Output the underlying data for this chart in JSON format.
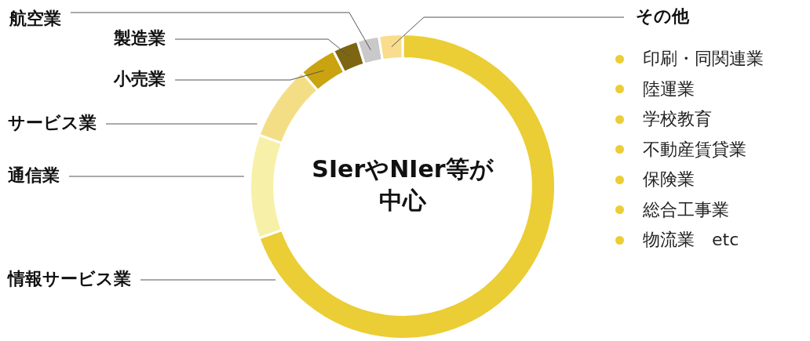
{
  "chart_data": {
    "type": "donut",
    "categories": [
      "情報サービス業",
      "通信業",
      "サービス業",
      "小売業",
      "製造業",
      "航空業",
      "その他"
    ],
    "values": [
      69.5,
      11,
      8,
      4,
      2.7,
      2.3,
      2.5
    ],
    "colors": [
      "#ebcd35",
      "#f7f0a8",
      "#f4de85",
      "#c9a310",
      "#7d6611",
      "#c9c9c9",
      "#f9dd8c"
    ],
    "annotations": [
      "SIerやNIer等が",
      "中心",
      "印刷・同関連業",
      "陸運業",
      "学校教育",
      "不動産賃貸業",
      "保険業",
      "総合工事業",
      "物流業　etc"
    ]
  }
}
